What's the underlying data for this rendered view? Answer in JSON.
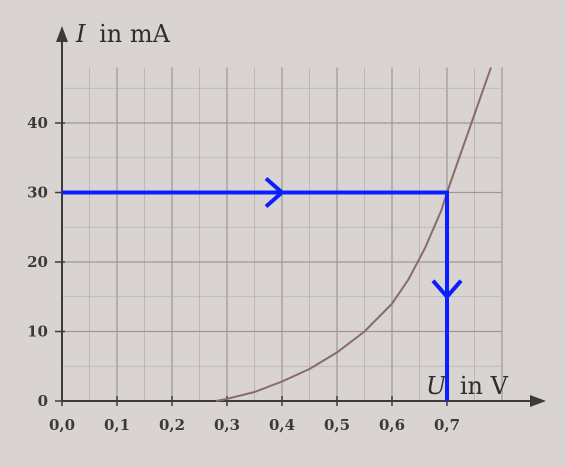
{
  "chart_data": {
    "type": "line",
    "title": "",
    "ylabel_symbol": "I",
    "ylabel_unit": "in mA",
    "xlabel_symbol": "U",
    "xlabel_unit": "in V",
    "xlim": [
      0.0,
      0.8
    ],
    "ylim": [
      0,
      48
    ],
    "grid": true,
    "x_ticks": [
      0.0,
      0.1,
      0.2,
      0.3,
      0.4,
      0.5,
      0.6,
      0.7
    ],
    "x_tick_labels": [
      "0,0",
      "0,1",
      "0,2",
      "0,3",
      "0,4",
      "0,5",
      "0,6",
      "0,7"
    ],
    "y_ticks": [
      0,
      10,
      20,
      30,
      40
    ],
    "y_tick_labels": [
      "0",
      "10",
      "20",
      "30",
      "40"
    ],
    "series": [
      {
        "color": "#8a6a6a",
        "x": [
          0.28,
          0.3,
          0.35,
          0.4,
          0.45,
          0.5,
          0.55,
          0.6,
          0.63,
          0.66,
          0.69,
          0.7,
          0.72,
          0.74,
          0.76,
          0.78
        ],
        "y": [
          0.0,
          0.3,
          1.3,
          2.8,
          4.6,
          7.0,
          10.0,
          14.0,
          17.5,
          22.0,
          27.5,
          30.0,
          34.5,
          39.0,
          43.5,
          48.0
        ]
      }
    ],
    "annotation": {
      "color": "#0a1fff",
      "path": [
        [
          0.0,
          30
        ],
        [
          0.7,
          30
        ],
        [
          0.7,
          0
        ]
      ]
    }
  }
}
